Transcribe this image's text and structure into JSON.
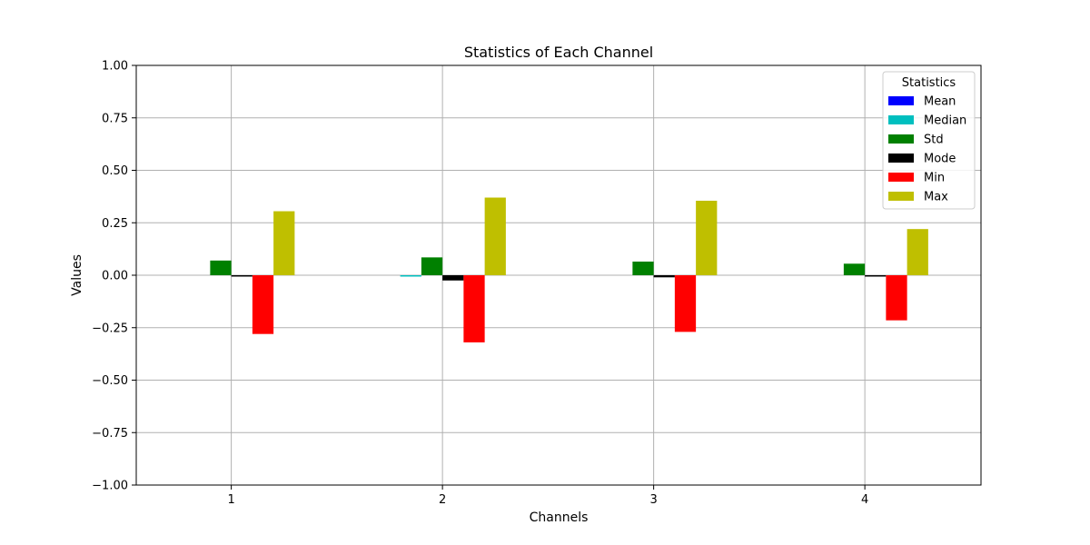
{
  "chart_data": {
    "type": "bar",
    "title": "Statistics of Each Channel",
    "xlabel": "Channels",
    "ylabel": "Values",
    "categories": [
      "1",
      "2",
      "3",
      "4"
    ],
    "ylim": [
      -1.0,
      1.0
    ],
    "yticks": [
      "−1.00",
      "−0.75",
      "−0.50",
      "−0.25",
      "0.00",
      "0.25",
      "0.50",
      "0.75",
      "1.00"
    ],
    "ytick_values": [
      -1.0,
      -0.75,
      -0.5,
      -0.25,
      0.0,
      0.25,
      0.5,
      0.75,
      1.0
    ],
    "grid": true,
    "legend": {
      "title": "Statistics",
      "placement": "top-right"
    },
    "series": [
      {
        "name": "Mean",
        "color": "#0000ff",
        "values": [
          0.0,
          0.0,
          0.0,
          0.0
        ]
      },
      {
        "name": "Median",
        "color": "#00bfbf",
        "values": [
          0.0,
          -0.005,
          0.0,
          0.0
        ]
      },
      {
        "name": "Std",
        "color": "#008000",
        "values": [
          0.07,
          0.085,
          0.065,
          0.055
        ]
      },
      {
        "name": "Mode",
        "color": "#000000",
        "values": [
          -0.005,
          -0.025,
          -0.01,
          -0.005
        ]
      },
      {
        "name": "Min",
        "color": "#ff0000",
        "values": [
          -0.28,
          -0.32,
          -0.27,
          -0.215
        ]
      },
      {
        "name": "Max",
        "color": "#bfbf00",
        "values": [
          0.305,
          0.37,
          0.355,
          0.22
        ]
      }
    ]
  }
}
